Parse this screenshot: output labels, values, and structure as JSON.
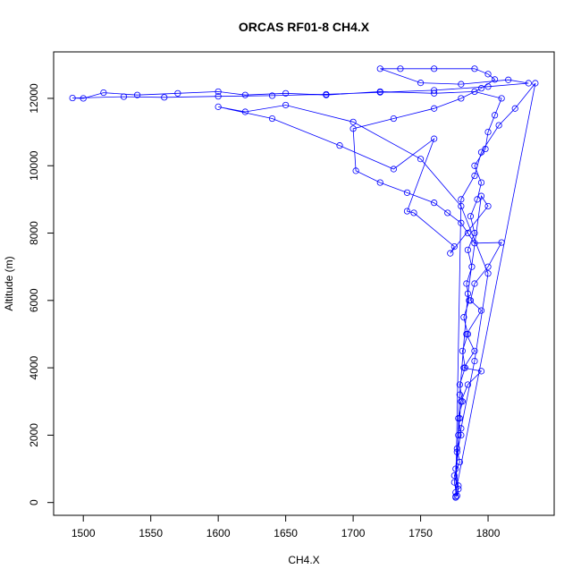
{
  "chart_data": {
    "type": "line",
    "title": "ORCAS RF01-8 CH4.X",
    "xlabel": "CH4.X",
    "ylabel": "Altitude (m)",
    "markers": true,
    "series": [
      {
        "color": "#0000ff",
        "x": [
          1776,
          1778,
          1775,
          1779,
          1777,
          1780,
          1778,
          1781,
          1779,
          1783,
          1781,
          1785,
          1782,
          1786,
          1784,
          1788,
          1785,
          1790,
          1787,
          1792,
          1795,
          1790,
          1798,
          1800,
          1805,
          1810,
          1790,
          1760,
          1720,
          1680,
          1650,
          1620,
          1600,
          1570,
          1540,
          1515,
          1500,
          1492,
          1530,
          1560,
          1600,
          1640,
          1680,
          1720,
          1760,
          1800,
          1830,
          1815,
          1780,
          1750,
          1720,
          1735,
          1760,
          1790,
          1800,
          1805,
          1795,
          1780,
          1760,
          1730,
          1700,
          1702,
          1720,
          1740,
          1760,
          1770,
          1780,
          1785,
          1790,
          1810,
          1800,
          1790,
          1787,
          1795,
          1784,
          1790,
          1782,
          1795,
          1785,
          1780,
          1779,
          1778,
          1777,
          1776,
          1778,
          1777,
          1775,
          1780,
          1790,
          1800,
          1780,
          1750,
          1700,
          1650,
          1620,
          1600,
          1640,
          1690,
          1730,
          1760,
          1740,
          1745,
          1775,
          1772,
          1800,
          1795,
          1785,
          1779,
          1776,
          1835,
          1820,
          1808,
          1795,
          1790,
          1780,
          1776
        ],
        "y": [
          150,
          400,
          800,
          1200,
          1600,
          2000,
          2500,
          3000,
          3500,
          4000,
          4500,
          5000,
          5500,
          6000,
          6500,
          7000,
          7500,
          8000,
          8500,
          9000,
          9500,
          10000,
          10500,
          11000,
          11500,
          12000,
          12200,
          12150,
          12200,
          12100,
          12150,
          12100,
          12200,
          12150,
          12100,
          12170,
          12000,
          12010,
          12050,
          12030,
          12060,
          12080,
          12120,
          12180,
          12240,
          12350,
          12450,
          12550,
          12420,
          12460,
          12880,
          12880,
          12880,
          12880,
          12720,
          12560,
          12300,
          12000,
          11700,
          11400,
          11100,
          9850,
          9500,
          9200,
          8900,
          8600,
          8300,
          8000,
          7700,
          7720,
          7000,
          6500,
          6000,
          5700,
          5000,
          4500,
          4000,
          3900,
          3500,
          3000,
          2500,
          2000,
          1500,
          1000,
          500,
          200,
          600,
          2200,
          4200,
          6800,
          8800,
          10200,
          11300,
          11800,
          11600,
          11750,
          11400,
          10600,
          9900,
          10800,
          8650,
          8600,
          7600,
          7400,
          8800,
          9100,
          6200,
          3200,
          300,
          12450,
          11700,
          11200,
          10400,
          9700,
          9000,
          180
        ]
      }
    ],
    "xlim": [
      1478,
      1849
    ],
    "ylim": [
      -380,
      13380
    ],
    "xticks": [
      1500,
      1550,
      1600,
      1650,
      1700,
      1750,
      1800
    ],
    "yticks": [
      0,
      2000,
      4000,
      6000,
      8000,
      10000,
      12000
    ]
  }
}
